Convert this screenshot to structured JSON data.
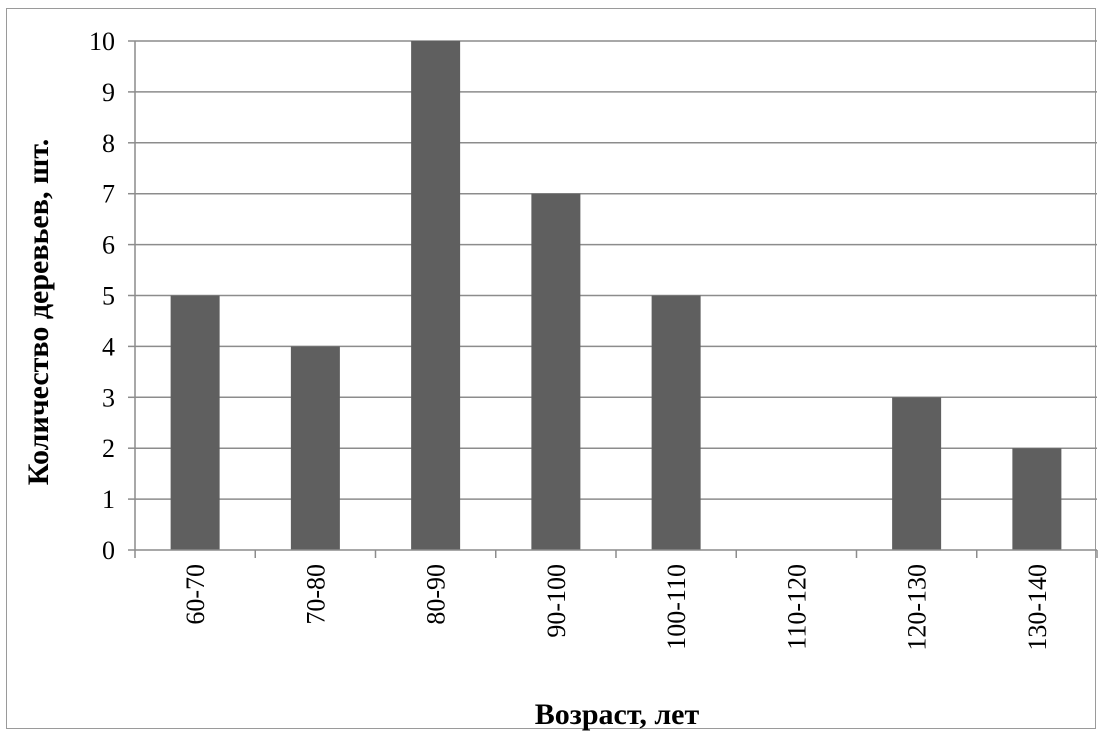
{
  "chart_data": {
    "type": "bar",
    "title": "",
    "xlabel": "Возраст, лет",
    "ylabel": "Количество деревьев, шт.",
    "categories": [
      "60-70",
      "70-80",
      "80-90",
      "90-100",
      "100-110",
      "110-120",
      "120-130",
      "130-140"
    ],
    "values": [
      5,
      4,
      10,
      7,
      5,
      0,
      3,
      2
    ],
    "ylim": [
      0,
      10
    ],
    "yticks": [
      "0",
      "1",
      "2",
      "3",
      "4",
      "5",
      "6",
      "7",
      "8",
      "9",
      "10"
    ],
    "grid": true,
    "legend": "none",
    "bar_color": "#5f5f5f",
    "grid_color": "#8c8c8c"
  }
}
